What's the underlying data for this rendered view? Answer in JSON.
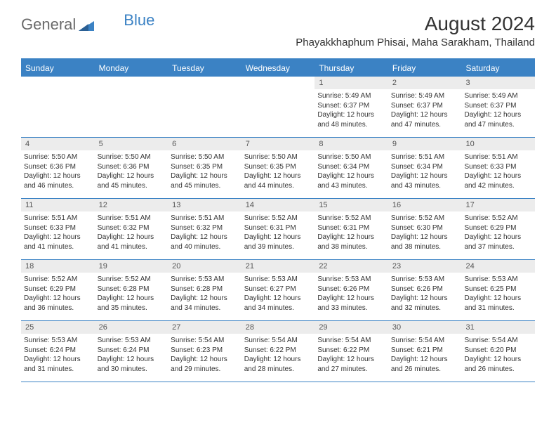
{
  "brand": {
    "text_part1": "General",
    "text_part2": "Blue",
    "icon_color": "#3b82c4",
    "text_color_gray": "#6a6a6a"
  },
  "header": {
    "month_title": "August 2024",
    "location": "Phayakkhaphum Phisai, Maha Sarakham, Thailand"
  },
  "colors": {
    "header_bg": "#3b82c4",
    "header_text": "#ffffff",
    "daynum_bg": "#ececec",
    "border": "#3b82c4"
  },
  "day_names": [
    "Sunday",
    "Monday",
    "Tuesday",
    "Wednesday",
    "Thursday",
    "Friday",
    "Saturday"
  ],
  "weeks": [
    [
      {
        "num": "",
        "sunrise": "",
        "sunset": "",
        "daylight": ""
      },
      {
        "num": "",
        "sunrise": "",
        "sunset": "",
        "daylight": ""
      },
      {
        "num": "",
        "sunrise": "",
        "sunset": "",
        "daylight": ""
      },
      {
        "num": "",
        "sunrise": "",
        "sunset": "",
        "daylight": ""
      },
      {
        "num": "1",
        "sunrise": "Sunrise: 5:49 AM",
        "sunset": "Sunset: 6:37 PM",
        "daylight": "Daylight: 12 hours and 48 minutes."
      },
      {
        "num": "2",
        "sunrise": "Sunrise: 5:49 AM",
        "sunset": "Sunset: 6:37 PM",
        "daylight": "Daylight: 12 hours and 47 minutes."
      },
      {
        "num": "3",
        "sunrise": "Sunrise: 5:49 AM",
        "sunset": "Sunset: 6:37 PM",
        "daylight": "Daylight: 12 hours and 47 minutes."
      }
    ],
    [
      {
        "num": "4",
        "sunrise": "Sunrise: 5:50 AM",
        "sunset": "Sunset: 6:36 PM",
        "daylight": "Daylight: 12 hours and 46 minutes."
      },
      {
        "num": "5",
        "sunrise": "Sunrise: 5:50 AM",
        "sunset": "Sunset: 6:36 PM",
        "daylight": "Daylight: 12 hours and 45 minutes."
      },
      {
        "num": "6",
        "sunrise": "Sunrise: 5:50 AM",
        "sunset": "Sunset: 6:35 PM",
        "daylight": "Daylight: 12 hours and 45 minutes."
      },
      {
        "num": "7",
        "sunrise": "Sunrise: 5:50 AM",
        "sunset": "Sunset: 6:35 PM",
        "daylight": "Daylight: 12 hours and 44 minutes."
      },
      {
        "num": "8",
        "sunrise": "Sunrise: 5:50 AM",
        "sunset": "Sunset: 6:34 PM",
        "daylight": "Daylight: 12 hours and 43 minutes."
      },
      {
        "num": "9",
        "sunrise": "Sunrise: 5:51 AM",
        "sunset": "Sunset: 6:34 PM",
        "daylight": "Daylight: 12 hours and 43 minutes."
      },
      {
        "num": "10",
        "sunrise": "Sunrise: 5:51 AM",
        "sunset": "Sunset: 6:33 PM",
        "daylight": "Daylight: 12 hours and 42 minutes."
      }
    ],
    [
      {
        "num": "11",
        "sunrise": "Sunrise: 5:51 AM",
        "sunset": "Sunset: 6:33 PM",
        "daylight": "Daylight: 12 hours and 41 minutes."
      },
      {
        "num": "12",
        "sunrise": "Sunrise: 5:51 AM",
        "sunset": "Sunset: 6:32 PM",
        "daylight": "Daylight: 12 hours and 41 minutes."
      },
      {
        "num": "13",
        "sunrise": "Sunrise: 5:51 AM",
        "sunset": "Sunset: 6:32 PM",
        "daylight": "Daylight: 12 hours and 40 minutes."
      },
      {
        "num": "14",
        "sunrise": "Sunrise: 5:52 AM",
        "sunset": "Sunset: 6:31 PM",
        "daylight": "Daylight: 12 hours and 39 minutes."
      },
      {
        "num": "15",
        "sunrise": "Sunrise: 5:52 AM",
        "sunset": "Sunset: 6:31 PM",
        "daylight": "Daylight: 12 hours and 38 minutes."
      },
      {
        "num": "16",
        "sunrise": "Sunrise: 5:52 AM",
        "sunset": "Sunset: 6:30 PM",
        "daylight": "Daylight: 12 hours and 38 minutes."
      },
      {
        "num": "17",
        "sunrise": "Sunrise: 5:52 AM",
        "sunset": "Sunset: 6:29 PM",
        "daylight": "Daylight: 12 hours and 37 minutes."
      }
    ],
    [
      {
        "num": "18",
        "sunrise": "Sunrise: 5:52 AM",
        "sunset": "Sunset: 6:29 PM",
        "daylight": "Daylight: 12 hours and 36 minutes."
      },
      {
        "num": "19",
        "sunrise": "Sunrise: 5:52 AM",
        "sunset": "Sunset: 6:28 PM",
        "daylight": "Daylight: 12 hours and 35 minutes."
      },
      {
        "num": "20",
        "sunrise": "Sunrise: 5:53 AM",
        "sunset": "Sunset: 6:28 PM",
        "daylight": "Daylight: 12 hours and 34 minutes."
      },
      {
        "num": "21",
        "sunrise": "Sunrise: 5:53 AM",
        "sunset": "Sunset: 6:27 PM",
        "daylight": "Daylight: 12 hours and 34 minutes."
      },
      {
        "num": "22",
        "sunrise": "Sunrise: 5:53 AM",
        "sunset": "Sunset: 6:26 PM",
        "daylight": "Daylight: 12 hours and 33 minutes."
      },
      {
        "num": "23",
        "sunrise": "Sunrise: 5:53 AM",
        "sunset": "Sunset: 6:26 PM",
        "daylight": "Daylight: 12 hours and 32 minutes."
      },
      {
        "num": "24",
        "sunrise": "Sunrise: 5:53 AM",
        "sunset": "Sunset: 6:25 PM",
        "daylight": "Daylight: 12 hours and 31 minutes."
      }
    ],
    [
      {
        "num": "25",
        "sunrise": "Sunrise: 5:53 AM",
        "sunset": "Sunset: 6:24 PM",
        "daylight": "Daylight: 12 hours and 31 minutes."
      },
      {
        "num": "26",
        "sunrise": "Sunrise: 5:53 AM",
        "sunset": "Sunset: 6:24 PM",
        "daylight": "Daylight: 12 hours and 30 minutes."
      },
      {
        "num": "27",
        "sunrise": "Sunrise: 5:54 AM",
        "sunset": "Sunset: 6:23 PM",
        "daylight": "Daylight: 12 hours and 29 minutes."
      },
      {
        "num": "28",
        "sunrise": "Sunrise: 5:54 AM",
        "sunset": "Sunset: 6:22 PM",
        "daylight": "Daylight: 12 hours and 28 minutes."
      },
      {
        "num": "29",
        "sunrise": "Sunrise: 5:54 AM",
        "sunset": "Sunset: 6:22 PM",
        "daylight": "Daylight: 12 hours and 27 minutes."
      },
      {
        "num": "30",
        "sunrise": "Sunrise: 5:54 AM",
        "sunset": "Sunset: 6:21 PM",
        "daylight": "Daylight: 12 hours and 26 minutes."
      },
      {
        "num": "31",
        "sunrise": "Sunrise: 5:54 AM",
        "sunset": "Sunset: 6:20 PM",
        "daylight": "Daylight: 12 hours and 26 minutes."
      }
    ]
  ]
}
